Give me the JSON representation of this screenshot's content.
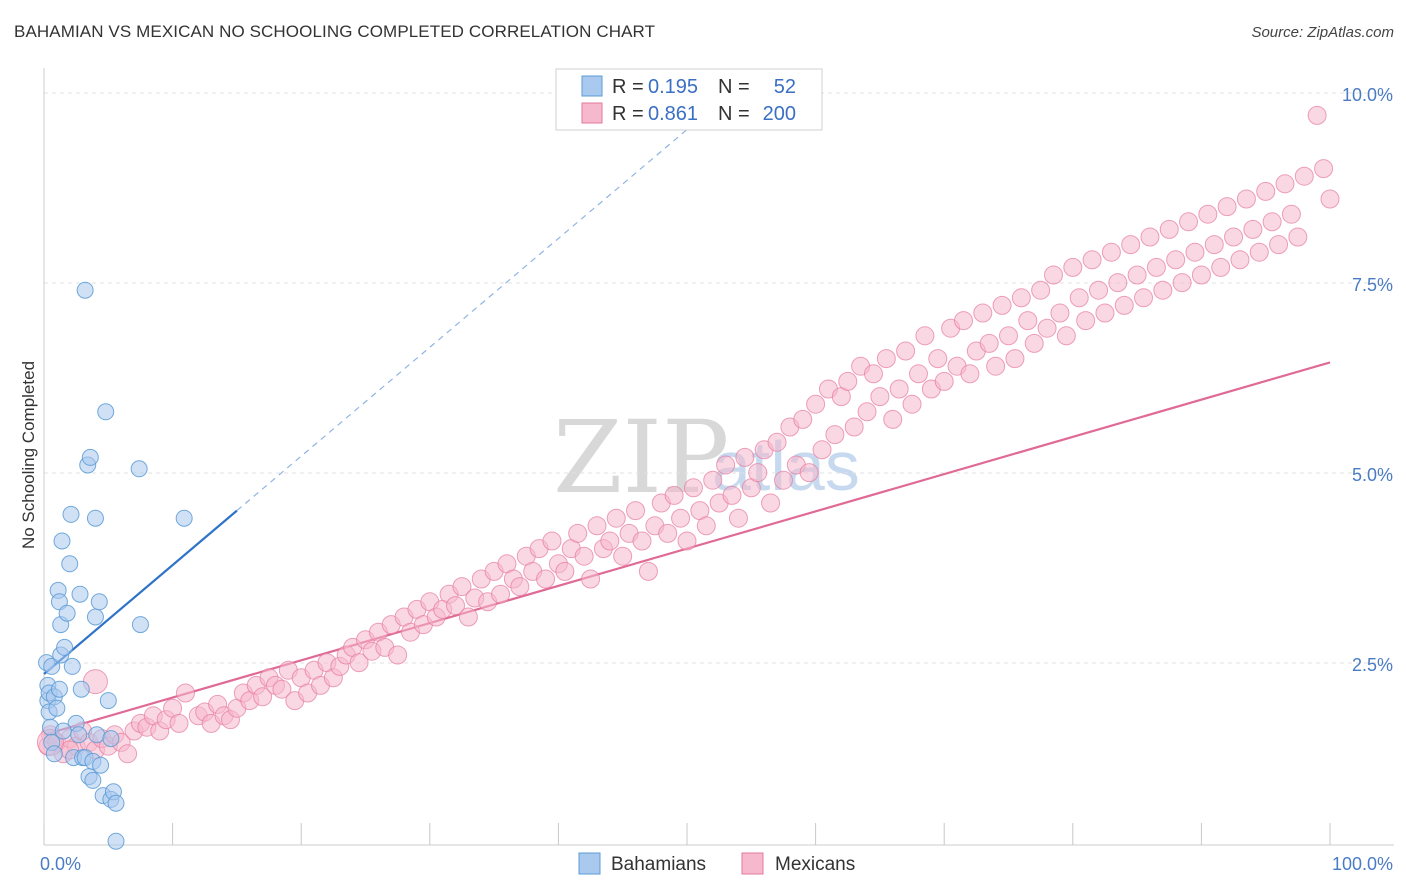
{
  "header": {
    "title": "BAHAMIAN VS MEXICAN NO SCHOOLING COMPLETED CORRELATION CHART",
    "source": "Source: ZipAtlas.com"
  },
  "watermark": {
    "zip": "ZIP",
    "atlas": "atlas"
  },
  "legend": {
    "r_label": "R =",
    "n_label": "N =",
    "rows": [
      {
        "r": "0.195",
        "n": "52"
      },
      {
        "r": "0.861",
        "n": "200"
      }
    ]
  },
  "bottom_legend": [
    "Bahamians",
    "Mexicans"
  ],
  "chart_data": {
    "type": "scatter",
    "title": "BAHAMIAN VS MEXICAN NO SCHOOLING COMPLETED CORRELATION CHART",
    "xlabel": "",
    "ylabel": "No Schooling Completed",
    "x_ticks": [
      "0.0%",
      "100.0%"
    ],
    "y_ticks": [
      "2.5%",
      "5.0%",
      "7.5%",
      "10.0%"
    ],
    "xlim": [
      0,
      100
    ],
    "ylim": [
      0,
      10
    ],
    "colors": {
      "bahamians": "#5b9bd5",
      "bahamians_fill": "#aac9ee",
      "mexicans": "#e57aa0",
      "mexicans_fill": "#f5b8cc",
      "blue_line": "#2f73c8",
      "pink_line": "#e06a96",
      "grid": "#e0e0e0",
      "tick_text": "#4a7cc4"
    },
    "series": [
      {
        "name": "Bahamians",
        "R": 0.195,
        "N": 52,
        "trend": {
          "x0": 0,
          "y0": 2.25,
          "x1": 15,
          "y1": 4.4,
          "dashed_to_x": 52,
          "dashed_to_y": 9.7
        },
        "points": [
          [
            0.2,
            2.4
          ],
          [
            0.3,
            2.1
          ],
          [
            0.3,
            1.9
          ],
          [
            0.4,
            1.75
          ],
          [
            0.5,
            1.55
          ],
          [
            0.4,
            2.0
          ],
          [
            0.6,
            2.35
          ],
          [
            0.8,
            1.95
          ],
          [
            1.0,
            1.8
          ],
          [
            1.2,
            2.05
          ],
          [
            1.3,
            2.5
          ],
          [
            1.1,
            3.35
          ],
          [
            1.2,
            3.2
          ],
          [
            1.3,
            2.9
          ],
          [
            1.4,
            4.0
          ],
          [
            1.6,
            2.6
          ],
          [
            1.8,
            3.05
          ],
          [
            2.0,
            3.7
          ],
          [
            2.2,
            2.35
          ],
          [
            2.1,
            4.35
          ],
          [
            2.3,
            1.15
          ],
          [
            2.5,
            1.6
          ],
          [
            2.7,
            1.45
          ],
          [
            2.8,
            3.3
          ],
          [
            2.9,
            2.05
          ],
          [
            3.0,
            1.15
          ],
          [
            3.2,
            7.3
          ],
          [
            3.4,
            5.0
          ],
          [
            3.6,
            5.1
          ],
          [
            3.5,
            0.9
          ],
          [
            3.8,
            0.85
          ],
          [
            4.0,
            3.0
          ],
          [
            4.0,
            4.3
          ],
          [
            4.1,
            1.45
          ],
          [
            4.3,
            3.2
          ],
          [
            4.8,
            5.7
          ],
          [
            5.0,
            1.9
          ],
          [
            5.2,
            1.4
          ],
          [
            3.2,
            1.15
          ],
          [
            3.8,
            1.1
          ],
          [
            4.4,
            1.05
          ],
          [
            4.6,
            0.65
          ],
          [
            5.2,
            0.6
          ],
          [
            5.4,
            0.7
          ],
          [
            5.6,
            0.55
          ],
          [
            5.6,
            0.05
          ],
          [
            7.5,
            2.9
          ],
          [
            7.4,
            4.95
          ],
          [
            10.9,
            4.3
          ],
          [
            0.6,
            1.35
          ],
          [
            1.5,
            1.5
          ],
          [
            0.8,
            1.2
          ]
        ]
      },
      {
        "name": "Mexicans",
        "R": 0.861,
        "N": 200,
        "trend": {
          "x0": 0,
          "y0": 1.45,
          "x1": 100,
          "y1": 6.35
        },
        "points": [
          [
            0.3,
            1.3
          ],
          [
            0.5,
            1.45
          ],
          [
            1.0,
            1.35
          ],
          [
            1.5,
            1.2
          ],
          [
            2.0,
            1.4
          ],
          [
            2.5,
            1.3
          ],
          [
            3.0,
            1.5
          ],
          [
            3.5,
            1.35
          ],
          [
            4.0,
            1.25
          ],
          [
            4.5,
            1.4
          ],
          [
            5.0,
            1.3
          ],
          [
            5.5,
            1.45
          ],
          [
            6.0,
            1.35
          ],
          [
            6.5,
            1.2
          ],
          [
            7.0,
            1.5
          ],
          [
            7.5,
            1.6
          ],
          [
            8.0,
            1.55
          ],
          [
            8.5,
            1.7
          ],
          [
            9.0,
            1.5
          ],
          [
            9.5,
            1.65
          ],
          [
            10.0,
            1.8
          ],
          [
            10.5,
            1.6
          ],
          [
            11.0,
            2.0
          ],
          [
            12.0,
            1.7
          ],
          [
            12.5,
            1.75
          ],
          [
            13.0,
            1.6
          ],
          [
            13.5,
            1.85
          ],
          [
            14.0,
            1.7
          ],
          [
            14.5,
            1.65
          ],
          [
            15.0,
            1.8
          ],
          [
            15.5,
            2.0
          ],
          [
            16.0,
            1.9
          ],
          [
            16.5,
            2.1
          ],
          [
            17.0,
            1.95
          ],
          [
            17.5,
            2.2
          ],
          [
            18.0,
            2.1
          ],
          [
            18.5,
            2.05
          ],
          [
            19.0,
            2.3
          ],
          [
            19.5,
            1.9
          ],
          [
            20.0,
            2.2
          ],
          [
            20.5,
            2.0
          ],
          [
            21.0,
            2.3
          ],
          [
            21.5,
            2.1
          ],
          [
            22.0,
            2.4
          ],
          [
            22.5,
            2.2
          ],
          [
            23.0,
            2.35
          ],
          [
            23.5,
            2.5
          ],
          [
            24.0,
            2.6
          ],
          [
            24.5,
            2.4
          ],
          [
            25.0,
            2.7
          ],
          [
            25.5,
            2.55
          ],
          [
            26.0,
            2.8
          ],
          [
            26.5,
            2.6
          ],
          [
            27.0,
            2.9
          ],
          [
            27.5,
            2.5
          ],
          [
            28.0,
            3.0
          ],
          [
            28.5,
            2.8
          ],
          [
            29.0,
            3.1
          ],
          [
            29.5,
            2.9
          ],
          [
            30.0,
            3.2
          ],
          [
            30.5,
            3.0
          ],
          [
            31.0,
            3.1
          ],
          [
            31.5,
            3.3
          ],
          [
            32.0,
            3.15
          ],
          [
            32.5,
            3.4
          ],
          [
            33.0,
            3.0
          ],
          [
            33.5,
            3.25
          ],
          [
            34.0,
            3.5
          ],
          [
            34.5,
            3.2
          ],
          [
            35.0,
            3.6
          ],
          [
            35.5,
            3.3
          ],
          [
            36.0,
            3.7
          ],
          [
            36.5,
            3.5
          ],
          [
            37.0,
            3.4
          ],
          [
            37.5,
            3.8
          ],
          [
            38.0,
            3.6
          ],
          [
            38.5,
            3.9
          ],
          [
            39.0,
            3.5
          ],
          [
            39.5,
            4.0
          ],
          [
            40.0,
            3.7
          ],
          [
            40.5,
            3.6
          ],
          [
            41.0,
            3.9
          ],
          [
            41.5,
            4.1
          ],
          [
            42.0,
            3.8
          ],
          [
            42.5,
            3.5
          ],
          [
            43.0,
            4.2
          ],
          [
            43.5,
            3.9
          ],
          [
            44.0,
            4.0
          ],
          [
            44.5,
            4.3
          ],
          [
            45.0,
            3.8
          ],
          [
            45.5,
            4.1
          ],
          [
            46.0,
            4.4
          ],
          [
            46.5,
            4.0
          ],
          [
            47.0,
            3.6
          ],
          [
            47.5,
            4.2
          ],
          [
            48.0,
            4.5
          ],
          [
            48.5,
            4.1
          ],
          [
            49.0,
            4.6
          ],
          [
            49.5,
            4.3
          ],
          [
            50.0,
            4.0
          ],
          [
            50.5,
            4.7
          ],
          [
            51.0,
            4.4
          ],
          [
            51.5,
            4.2
          ],
          [
            52.0,
            4.8
          ],
          [
            52.5,
            4.5
          ],
          [
            53.0,
            5.0
          ],
          [
            53.5,
            4.6
          ],
          [
            54.0,
            4.3
          ],
          [
            54.5,
            5.1
          ],
          [
            55.0,
            4.7
          ],
          [
            55.5,
            4.9
          ],
          [
            56.0,
            5.2
          ],
          [
            56.5,
            4.5
          ],
          [
            57.0,
            5.3
          ],
          [
            57.5,
            4.8
          ],
          [
            58.0,
            5.5
          ],
          [
            58.5,
            5.0
          ],
          [
            59.0,
            5.6
          ],
          [
            59.5,
            4.9
          ],
          [
            60.0,
            5.8
          ],
          [
            60.5,
            5.2
          ],
          [
            61.0,
            6.0
          ],
          [
            61.5,
            5.4
          ],
          [
            62.0,
            5.9
          ],
          [
            62.5,
            6.1
          ],
          [
            63.0,
            5.5
          ],
          [
            63.5,
            6.3
          ],
          [
            64.0,
            5.7
          ],
          [
            64.5,
            6.2
          ],
          [
            65.0,
            5.9
          ],
          [
            65.5,
            6.4
          ],
          [
            66.0,
            5.6
          ],
          [
            66.5,
            6.0
          ],
          [
            67.0,
            6.5
          ],
          [
            67.5,
            5.8
          ],
          [
            68.0,
            6.2
          ],
          [
            68.5,
            6.7
          ],
          [
            69.0,
            6.0
          ],
          [
            69.5,
            6.4
          ],
          [
            70.0,
            6.1
          ],
          [
            70.5,
            6.8
          ],
          [
            71.0,
            6.3
          ],
          [
            71.5,
            6.9
          ],
          [
            72.0,
            6.2
          ],
          [
            72.5,
            6.5
          ],
          [
            73.0,
            7.0
          ],
          [
            73.5,
            6.6
          ],
          [
            74.0,
            6.3
          ],
          [
            74.5,
            7.1
          ],
          [
            75.0,
            6.7
          ],
          [
            75.5,
            6.4
          ],
          [
            76.0,
            7.2
          ],
          [
            76.5,
            6.9
          ],
          [
            77.0,
            6.6
          ],
          [
            77.5,
            7.3
          ],
          [
            78.0,
            6.8
          ],
          [
            78.5,
            7.5
          ],
          [
            79.0,
            7.0
          ],
          [
            79.5,
            6.7
          ],
          [
            80.0,
            7.6
          ],
          [
            80.5,
            7.2
          ],
          [
            81.0,
            6.9
          ],
          [
            81.5,
            7.7
          ],
          [
            82.0,
            7.3
          ],
          [
            82.5,
            7.0
          ],
          [
            83.0,
            7.8
          ],
          [
            83.5,
            7.4
          ],
          [
            84.0,
            7.1
          ],
          [
            84.5,
            7.9
          ],
          [
            85.0,
            7.5
          ],
          [
            85.5,
            7.2
          ],
          [
            86.0,
            8.0
          ],
          [
            86.5,
            7.6
          ],
          [
            87.0,
            7.3
          ],
          [
            87.5,
            8.1
          ],
          [
            88.0,
            7.7
          ],
          [
            88.5,
            7.4
          ],
          [
            89.0,
            8.2
          ],
          [
            89.5,
            7.8
          ],
          [
            90.0,
            7.5
          ],
          [
            90.5,
            8.3
          ],
          [
            91.0,
            7.9
          ],
          [
            91.5,
            7.6
          ],
          [
            92.0,
            8.4
          ],
          [
            92.5,
            8.0
          ],
          [
            93.0,
            7.7
          ],
          [
            93.5,
            8.5
          ],
          [
            94.0,
            8.1
          ],
          [
            94.5,
            7.8
          ],
          [
            95.0,
            8.6
          ],
          [
            95.5,
            8.2
          ],
          [
            96.0,
            7.9
          ],
          [
            96.5,
            8.7
          ],
          [
            97.0,
            8.3
          ],
          [
            97.5,
            8.0
          ],
          [
            98.0,
            8.8
          ],
          [
            99.0,
            9.6
          ],
          [
            99.5,
            8.9
          ],
          [
            100.0,
            8.5
          ],
          [
            2.0,
            1.25
          ]
        ]
      }
    ]
  }
}
